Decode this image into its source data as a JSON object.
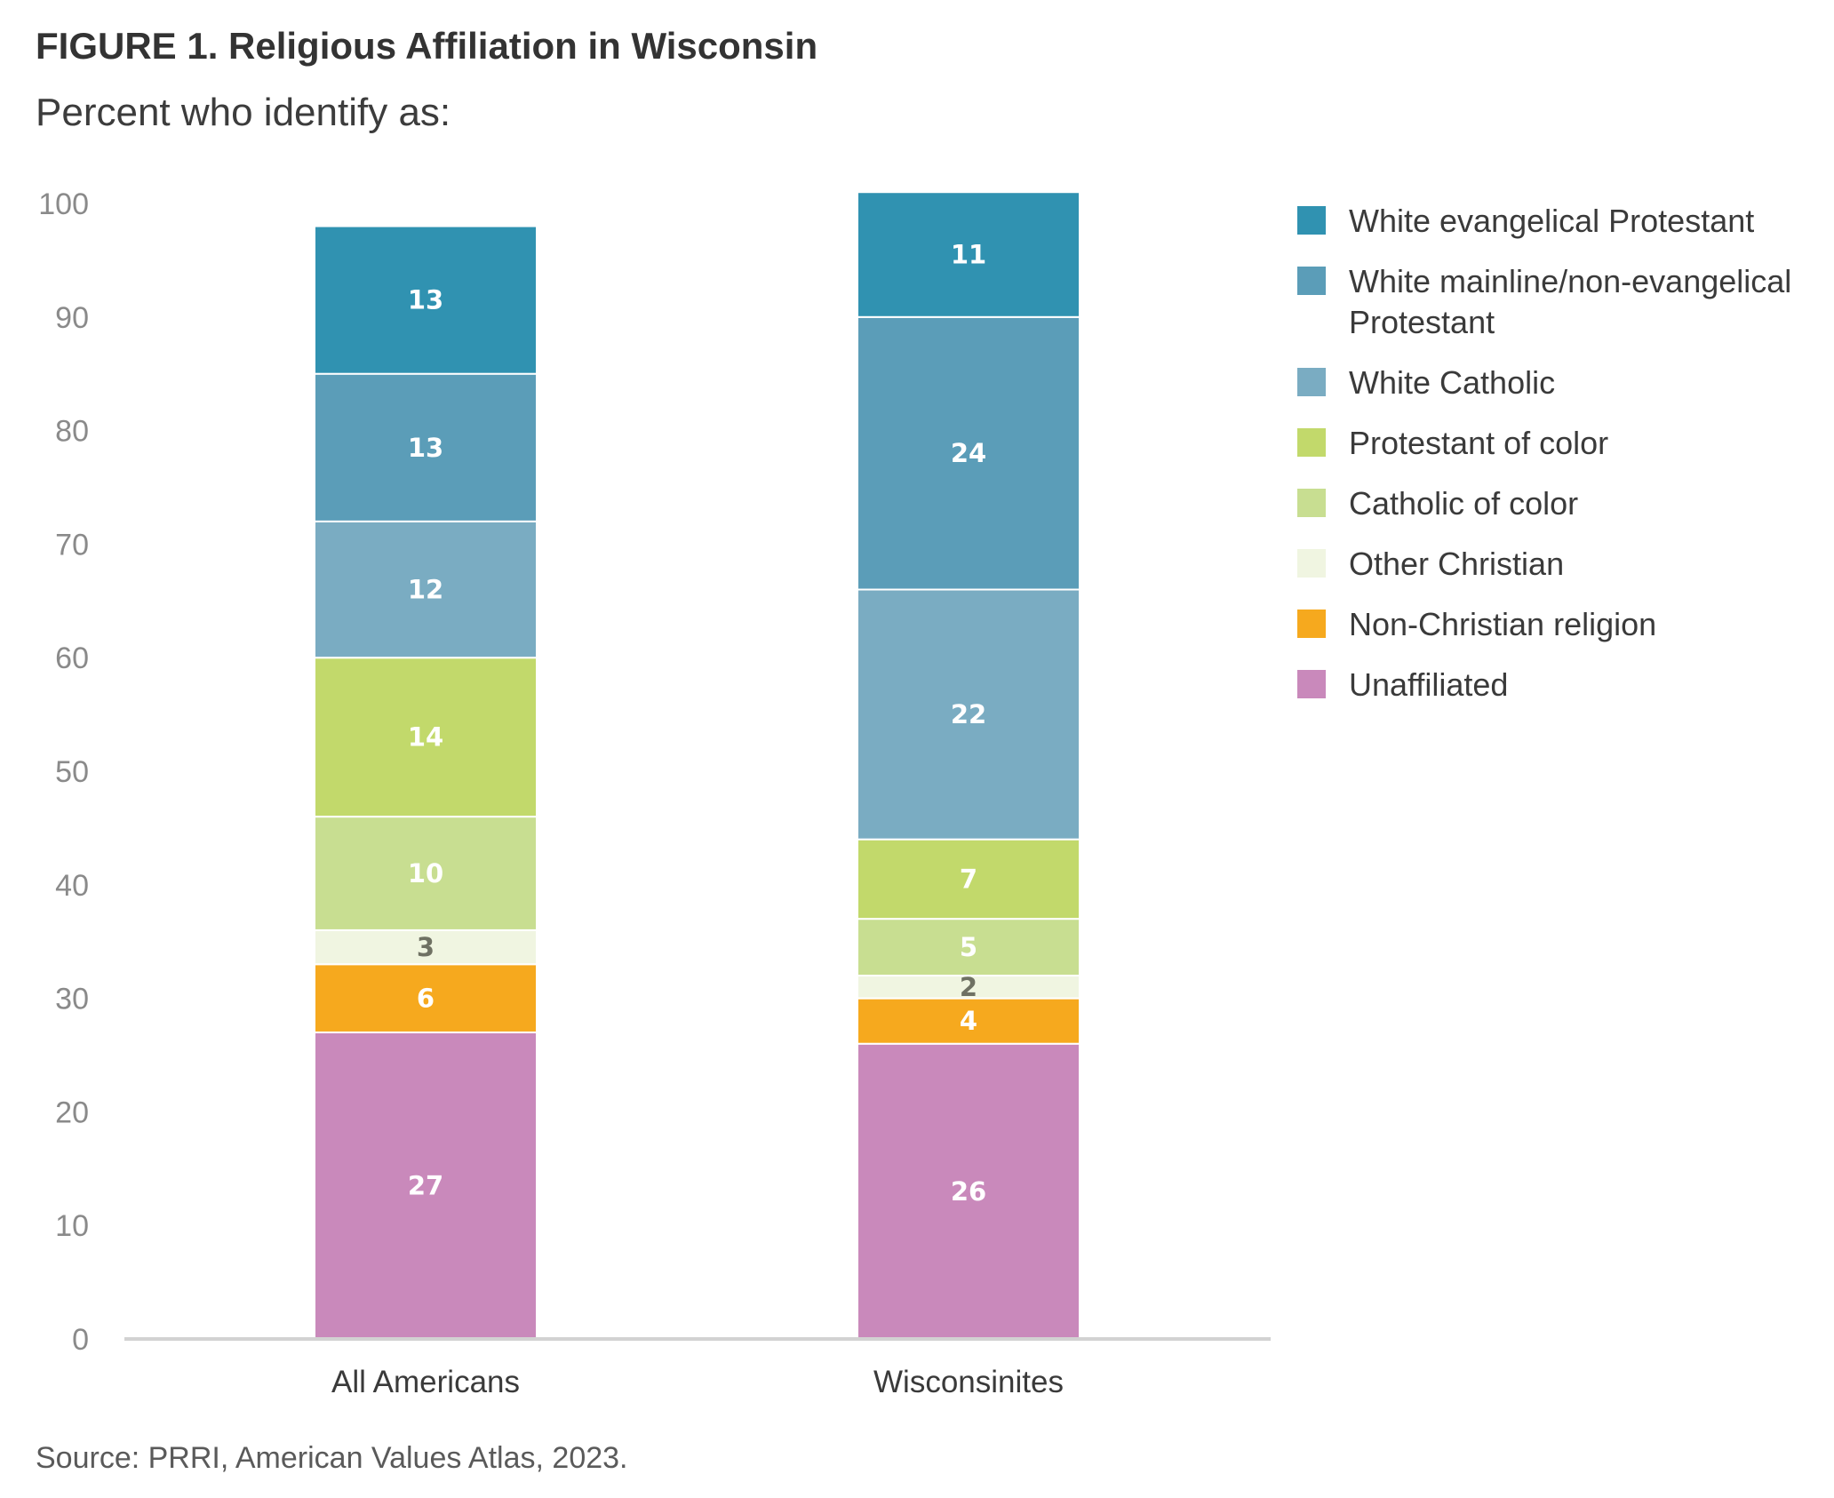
{
  "title": "FIGURE 1. Religious Affiliation in Wisconsin",
  "subtitle": "Percent who identify as:",
  "source": "Source: PRRI, American Values Atlas, 2023.",
  "chart_data": {
    "type": "bar",
    "stacked": true,
    "categories": [
      "All Americans",
      "Wisconsinites"
    ],
    "ylim": [
      0,
      100
    ],
    "yticks": [
      "0",
      "10",
      "20",
      "30",
      "40",
      "50",
      "60",
      "70",
      "80",
      "90",
      "100"
    ],
    "grid": false,
    "legend_position": "right",
    "series": [
      {
        "name": "Unaffiliated",
        "values": [
          27,
          26
        ],
        "labels": [
          "27",
          "26"
        ],
        "color": "#c989bb",
        "label_color": "#ffffff"
      },
      {
        "name": "Non-Christian religion",
        "values": [
          6,
          4
        ],
        "labels": [
          "6",
          "4"
        ],
        "color": "#f6a91e",
        "label_color": "#ffffff"
      },
      {
        "name": "Other Christian",
        "values": [
          3,
          2
        ],
        "labels": [
          "3",
          "2"
        ],
        "color": "#f0f5e1",
        "label_color": "#6f7163"
      },
      {
        "name": "Catholic of color",
        "values": [
          10,
          5
        ],
        "labels": [
          "10",
          "5"
        ],
        "color": "#c8de91",
        "label_color": "#ffffff"
      },
      {
        "name": "Protestant of color",
        "values": [
          14,
          7
        ],
        "labels": [
          "14",
          "7"
        ],
        "color": "#c2d96b",
        "label_color": "#ffffff"
      },
      {
        "name": "White Catholic",
        "values": [
          12,
          22
        ],
        "labels": [
          "12",
          "22"
        ],
        "color": "#7aacc2",
        "label_color": "#ffffff"
      },
      {
        "name": "White mainline/non-evangelical Protestant",
        "values": [
          13,
          24
        ],
        "labels": [
          "13",
          "24"
        ],
        "color": "#5b9db8",
        "label_color": "#ffffff"
      },
      {
        "name": "White evangelical Protestant",
        "values": [
          13,
          11
        ],
        "labels": [
          "13",
          "11"
        ],
        "color": "#3092b1",
        "label_color": "#ffffff"
      }
    ],
    "legend": [
      {
        "label": "White evangelical Protestant",
        "color": "#3092b1"
      },
      {
        "label": "White mainline/non-evangelical Protestant",
        "color": "#5b9db8"
      },
      {
        "label": "White Catholic",
        "color": "#7aacc2"
      },
      {
        "label": "Protestant of color",
        "color": "#c2d96b"
      },
      {
        "label": "Catholic of color",
        "color": "#c8de91"
      },
      {
        "label": "Other Christian",
        "color": "#f0f5e1"
      },
      {
        "label": "Non-Christian religion",
        "color": "#f6a91e"
      },
      {
        "label": "Unaffiliated",
        "color": "#c989bb"
      }
    ]
  }
}
